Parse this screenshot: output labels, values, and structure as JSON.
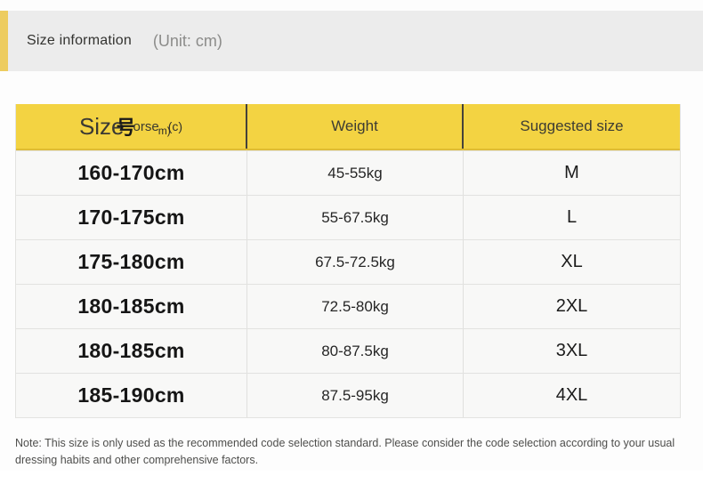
{
  "title_bar": {
    "title": "Size information",
    "unit": "(Unit: cm)"
  },
  "table": {
    "headers": {
      "size_parts": {
        "main": "Size",
        "overlay_char": "号",
        "overlay_small": "orse",
        "overlay_sub": "m)",
        "overlay_tail": "(c)"
      },
      "weight": "Weight",
      "suggested": "Suggested size"
    },
    "rows": [
      {
        "height": "160-170cm",
        "weight": "45-55kg",
        "size": "M"
      },
      {
        "height": "170-175cm",
        "weight": "55-67.5kg",
        "size": "L"
      },
      {
        "height": "175-180cm",
        "weight": "67.5-72.5kg",
        "size": "XL"
      },
      {
        "height": "180-185cm",
        "weight": "72.5-80kg",
        "size": "2XL"
      },
      {
        "height": "180-185cm",
        "weight": "80-87.5kg",
        "size": "3XL"
      },
      {
        "height": "185-190cm",
        "weight": "87.5-95kg",
        "size": "4XL"
      }
    ]
  },
  "note": "Note: This size is only used as the recommended code selection standard. Please consider the code selection according to your usual dressing habits and other comprehensive factors.",
  "colors": {
    "header_yellow": "#f3d342",
    "accent_stripe": "#edcc5f",
    "titlebar_gray": "#ececec",
    "row_background": "#f8f8f7",
    "header_divider_dark": "#45423a",
    "body_divider_light": "#e0e0de"
  }
}
